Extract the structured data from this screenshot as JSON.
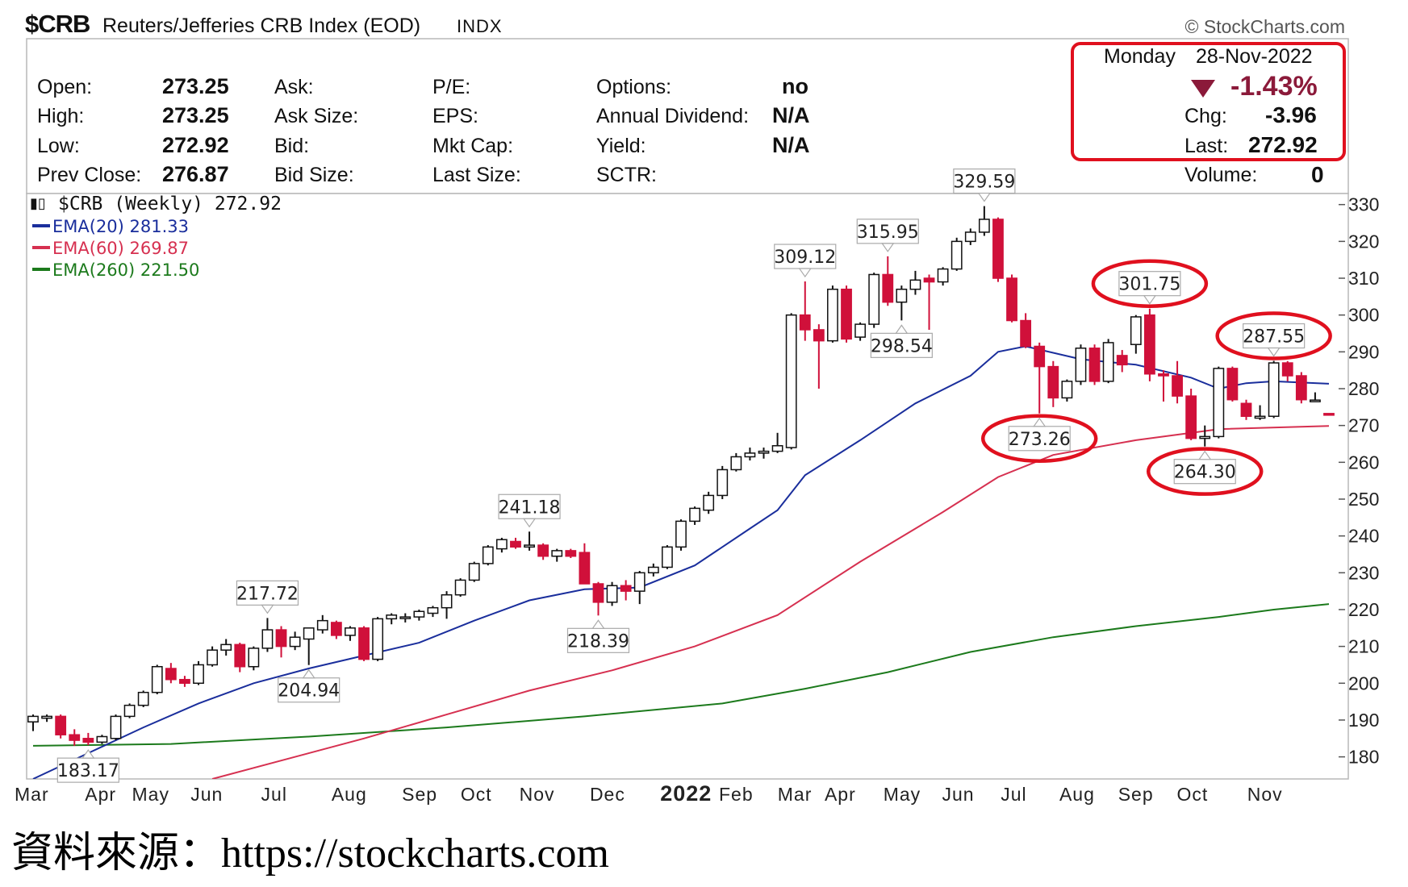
{
  "header": {
    "symbol": "$CRB",
    "title": "Reuters/Jefferies CRB Index (EOD)",
    "exchange": "INDX",
    "copyright": "© StockCharts.com"
  },
  "quote": {
    "open_label": "Open:",
    "open": "273.25",
    "high_label": "High:",
    "high": "273.25",
    "low_label": "Low:",
    "low": "272.92",
    "prevclose_label": "Prev Close:",
    "prevclose": "276.87",
    "ask_label": "Ask:",
    "asksize_label": "Ask Size:",
    "bid_label": "Bid:",
    "bidsize_label": "Bid Size:",
    "pe_label": "P/E:",
    "eps_label": "EPS:",
    "mktcap_label": "Mkt Cap:",
    "lastsize_label": "Last Size:",
    "options_label": "Options:",
    "options": "no",
    "dividend_label": "Annual Dividend:",
    "dividend": "N/A",
    "yield_label": "Yield:",
    "yield": "N/A",
    "sctr_label": "SCTR:",
    "date_day": "Monday",
    "date": "28-Nov-2022",
    "pct_change": "-1.43%",
    "chg_label": "Chg:",
    "chg": "-3.96",
    "last_label": "Last:",
    "last": "272.92",
    "volume_label": "Volume:",
    "volume": "0"
  },
  "legend": {
    "main": "$CRB (Weekly) 272.92",
    "ema20": "EMA(20) 281.33",
    "ema60": "EMA(60) 269.87",
    "ema260": "EMA(260) 221.50"
  },
  "colors": {
    "up": "#ffffff",
    "down": "#d0103a",
    "ema20": "#1a2e9c",
    "ema60": "#d63050",
    "ema260": "#1c7a1c",
    "highlight": "#e0101e",
    "text": "#111111",
    "pct": "#8b1a3a"
  },
  "source_note": "資料來源：https://stockcharts.com",
  "chart_data": {
    "type": "candlestick",
    "title": "$CRB (Weekly)",
    "timeframe": "weekly",
    "y_axis": {
      "side": "right",
      "ticks": [
        180,
        190,
        200,
        210,
        220,
        230,
        240,
        250,
        260,
        270,
        280,
        290,
        300,
        310,
        320,
        330
      ],
      "range": [
        174,
        333
      ]
    },
    "x_axis": {
      "labels": [
        "Mar",
        "Apr",
        "May",
        "Jun",
        "Jul",
        "Aug",
        "Sep",
        "Oct",
        "Nov",
        "Dec",
        "2022",
        "Feb",
        "Mar",
        "Apr",
        "May",
        "Jun",
        "Jul",
        "Aug",
        "Sep",
        "Oct",
        "Nov"
      ]
    },
    "candles": [
      {
        "w": 0,
        "o": 189.5,
        "h": 191.5,
        "l": 187.0,
        "c": 191.0
      },
      {
        "w": 1,
        "o": 190.5,
        "h": 191.5,
        "l": 189.5,
        "c": 191.0
      },
      {
        "w": 2,
        "o": 191.0,
        "h": 191.5,
        "l": 185.0,
        "c": 186.0
      },
      {
        "w": 3,
        "o": 186.0,
        "h": 187.5,
        "l": 183.0,
        "c": 184.5
      },
      {
        "w": 4,
        "o": 185.0,
        "h": 186.5,
        "l": 183.17,
        "c": 184.0
      },
      {
        "w": 5,
        "o": 184.0,
        "h": 186.0,
        "l": 183.5,
        "c": 185.5
      },
      {
        "w": 6,
        "o": 185.0,
        "h": 191.5,
        "l": 184.5,
        "c": 191.0
      },
      {
        "w": 7,
        "o": 191.0,
        "h": 194.5,
        "l": 190.5,
        "c": 194.0
      },
      {
        "w": 8,
        "o": 194.0,
        "h": 198.0,
        "l": 193.5,
        "c": 197.5
      },
      {
        "w": 9,
        "o": 197.5,
        "h": 205.0,
        "l": 197.0,
        "c": 204.5
      },
      {
        "w": 10,
        "o": 204.0,
        "h": 205.5,
        "l": 200.0,
        "c": 201.0
      },
      {
        "w": 11,
        "o": 201.0,
        "h": 202.0,
        "l": 199.0,
        "c": 200.0
      },
      {
        "w": 12,
        "o": 200.0,
        "h": 206.0,
        "l": 199.5,
        "c": 205.0
      },
      {
        "w": 13,
        "o": 205.0,
        "h": 210.0,
        "l": 204.5,
        "c": 209.0
      },
      {
        "w": 14,
        "o": 209.0,
        "h": 212.0,
        "l": 207.5,
        "c": 210.5
      },
      {
        "w": 15,
        "o": 210.5,
        "h": 211.0,
        "l": 203.0,
        "c": 204.5
      },
      {
        "w": 16,
        "o": 204.5,
        "h": 210.0,
        "l": 203.5,
        "c": 209.5
      },
      {
        "w": 17,
        "o": 209.5,
        "h": 217.72,
        "l": 208.5,
        "c": 214.5
      },
      {
        "w": 18,
        "o": 214.5,
        "h": 215.5,
        "l": 207.0,
        "c": 210.0
      },
      {
        "w": 19,
        "o": 210.0,
        "h": 214.0,
        "l": 209.0,
        "c": 212.5
      },
      {
        "w": 20,
        "o": 212.0,
        "h": 213.5,
        "l": 204.94,
        "c": 215.0
      },
      {
        "w": 21,
        "o": 214.5,
        "h": 218.5,
        "l": 213.5,
        "c": 217.0
      },
      {
        "w": 22,
        "o": 216.5,
        "h": 217.0,
        "l": 212.0,
        "c": 213.0
      },
      {
        "w": 23,
        "o": 213.0,
        "h": 215.5,
        "l": 211.5,
        "c": 215.0
      },
      {
        "w": 24,
        "o": 215.0,
        "h": 215.5,
        "l": 206.0,
        "c": 206.5
      },
      {
        "w": 25,
        "o": 206.5,
        "h": 218.0,
        "l": 206.0,
        "c": 217.5
      },
      {
        "w": 26,
        "o": 217.5,
        "h": 219.0,
        "l": 216.0,
        "c": 218.5
      },
      {
        "w": 27,
        "o": 218.0,
        "h": 219.0,
        "l": 216.5,
        "c": 218.0
      },
      {
        "w": 28,
        "o": 218.0,
        "h": 220.0,
        "l": 217.0,
        "c": 219.5
      },
      {
        "w": 29,
        "o": 219.0,
        "h": 221.0,
        "l": 218.0,
        "c": 220.5
      },
      {
        "w": 30,
        "o": 220.5,
        "h": 225.0,
        "l": 217.5,
        "c": 224.0
      },
      {
        "w": 31,
        "o": 224.0,
        "h": 228.5,
        "l": 223.5,
        "c": 228.0
      },
      {
        "w": 32,
        "o": 228.0,
        "h": 233.0,
        "l": 227.5,
        "c": 232.5
      },
      {
        "w": 33,
        "o": 232.5,
        "h": 237.5,
        "l": 232.0,
        "c": 237.0
      },
      {
        "w": 34,
        "o": 236.5,
        "h": 239.5,
        "l": 235.5,
        "c": 239.0
      },
      {
        "w": 35,
        "o": 238.5,
        "h": 239.5,
        "l": 236.5,
        "c": 237.0
      },
      {
        "w": 36,
        "o": 237.0,
        "h": 241.18,
        "l": 236.0,
        "c": 237.5
      },
      {
        "w": 37,
        "o": 237.5,
        "h": 238.0,
        "l": 233.5,
        "c": 234.5
      },
      {
        "w": 38,
        "o": 234.5,
        "h": 236.5,
        "l": 233.0,
        "c": 236.0
      },
      {
        "w": 39,
        "o": 236.0,
        "h": 236.5,
        "l": 234.0,
        "c": 234.5
      },
      {
        "w": 40,
        "o": 235.5,
        "h": 238.0,
        "l": 228.0,
        "c": 227.0
      },
      {
        "w": 41,
        "o": 227.0,
        "h": 227.5,
        "l": 218.39,
        "c": 222.0
      },
      {
        "w": 42,
        "o": 222.0,
        "h": 227.5,
        "l": 221.0,
        "c": 226.5
      },
      {
        "w": 43,
        "o": 226.5,
        "h": 228.0,
        "l": 222.5,
        "c": 225.0
      },
      {
        "w": 44,
        "o": 225.0,
        "h": 230.5,
        "l": 221.5,
        "c": 230.0
      },
      {
        "w": 45,
        "o": 230.0,
        "h": 232.5,
        "l": 229.0,
        "c": 231.5
      },
      {
        "w": 46,
        "o": 231.5,
        "h": 237.5,
        "l": 231.0,
        "c": 237.0
      },
      {
        "w": 47,
        "o": 237.0,
        "h": 244.5,
        "l": 236.0,
        "c": 244.0
      },
      {
        "w": 48,
        "o": 244.0,
        "h": 248.0,
        "l": 243.0,
        "c": 247.5
      },
      {
        "w": 49,
        "o": 247.0,
        "h": 252.0,
        "l": 246.0,
        "c": 251.0
      },
      {
        "w": 50,
        "o": 251.0,
        "h": 259.0,
        "l": 250.0,
        "c": 258.0
      },
      {
        "w": 51,
        "o": 258.0,
        "h": 262.5,
        "l": 257.5,
        "c": 261.5
      },
      {
        "w": 52,
        "o": 261.5,
        "h": 264.0,
        "l": 260.5,
        "c": 262.5
      },
      {
        "w": 53,
        "o": 262.5,
        "h": 264.0,
        "l": 261.0,
        "c": 263.0
      },
      {
        "w": 54,
        "o": 263.0,
        "h": 268.0,
        "l": 262.5,
        "c": 264.5
      },
      {
        "w": 55,
        "o": 264.0,
        "h": 300.5,
        "l": 263.5,
        "c": 300.0
      },
      {
        "w": 56,
        "o": 300.0,
        "h": 309.12,
        "l": 293.0,
        "c": 296.0
      },
      {
        "w": 57,
        "o": 296.0,
        "h": 297.5,
        "l": 280.0,
        "c": 293.0
      },
      {
        "w": 58,
        "o": 293.0,
        "h": 308.0,
        "l": 292.5,
        "c": 307.0
      },
      {
        "w": 59,
        "o": 307.0,
        "h": 308.0,
        "l": 292.5,
        "c": 293.5
      },
      {
        "w": 60,
        "o": 294.0,
        "h": 298.0,
        "l": 293.0,
        "c": 297.5
      },
      {
        "w": 61,
        "o": 297.5,
        "h": 311.5,
        "l": 296.5,
        "c": 311.0
      },
      {
        "w": 62,
        "o": 311.0,
        "h": 315.95,
        "l": 302.5,
        "c": 303.5
      },
      {
        "w": 63,
        "o": 303.5,
        "h": 308.0,
        "l": 298.54,
        "c": 307.0
      },
      {
        "w": 64,
        "o": 307.0,
        "h": 312.0,
        "l": 305.5,
        "c": 309.5
      },
      {
        "w": 65,
        "o": 310.0,
        "h": 311.0,
        "l": 296.0,
        "c": 309.0
      },
      {
        "w": 66,
        "o": 309.0,
        "h": 313.0,
        "l": 308.0,
        "c": 312.5
      },
      {
        "w": 67,
        "o": 312.5,
        "h": 321.0,
        "l": 312.0,
        "c": 320.0
      },
      {
        "w": 68,
        "o": 320.0,
        "h": 323.5,
        "l": 319.0,
        "c": 322.5
      },
      {
        "w": 69,
        "o": 322.5,
        "h": 329.59,
        "l": 321.5,
        "c": 326.0
      },
      {
        "w": 70,
        "o": 326.0,
        "h": 326.5,
        "l": 309.0,
        "c": 310.0
      },
      {
        "w": 71,
        "o": 310.0,
        "h": 311.0,
        "l": 298.0,
        "c": 298.5
      },
      {
        "w": 72,
        "o": 298.5,
        "h": 300.5,
        "l": 291.0,
        "c": 291.5
      },
      {
        "w": 73,
        "o": 291.5,
        "h": 292.5,
        "l": 273.26,
        "c": 286.0
      },
      {
        "w": 74,
        "o": 286.0,
        "h": 287.5,
        "l": 275.0,
        "c": 277.5
      },
      {
        "w": 75,
        "o": 277.5,
        "h": 282.5,
        "l": 276.5,
        "c": 282.0
      },
      {
        "w": 76,
        "o": 282.0,
        "h": 292.0,
        "l": 281.0,
        "c": 291.0
      },
      {
        "w": 77,
        "o": 291.0,
        "h": 292.0,
        "l": 281.0,
        "c": 282.0
      },
      {
        "w": 78,
        "o": 282.0,
        "h": 293.5,
        "l": 281.5,
        "c": 292.5
      },
      {
        "w": 79,
        "o": 289.0,
        "h": 290.5,
        "l": 284.5,
        "c": 286.5
      },
      {
        "w": 80,
        "o": 292.0,
        "h": 300.0,
        "l": 289.5,
        "c": 299.5
      },
      {
        "w": 81,
        "o": 300.0,
        "h": 301.75,
        "l": 282.0,
        "c": 284.0
      },
      {
        "w": 82,
        "o": 284.0,
        "h": 285.0,
        "l": 276.5,
        "c": 283.5
      },
      {
        "w": 83,
        "o": 283.5,
        "h": 287.5,
        "l": 276.0,
        "c": 278.0
      },
      {
        "w": 84,
        "o": 278.0,
        "h": 280.0,
        "l": 266.0,
        "c": 266.5
      },
      {
        "w": 85,
        "o": 266.5,
        "h": 270.0,
        "l": 264.3,
        "c": 267.0
      },
      {
        "w": 86,
        "o": 267.0,
        "h": 286.0,
        "l": 266.5,
        "c": 285.5
      },
      {
        "w": 87,
        "o": 285.5,
        "h": 286.0,
        "l": 276.5,
        "c": 277.0
      },
      {
        "w": 88,
        "o": 276.0,
        "h": 277.0,
        "l": 271.5,
        "c": 272.5
      },
      {
        "w": 89,
        "o": 272.0,
        "h": 275.5,
        "l": 271.5,
        "c": 272.5
      },
      {
        "w": 90,
        "o": 272.5,
        "h": 287.55,
        "l": 272.0,
        "c": 287.0
      },
      {
        "w": 91,
        "o": 287.0,
        "h": 287.5,
        "l": 282.0,
        "c": 283.5
      },
      {
        "w": 92,
        "o": 283.5,
        "h": 284.5,
        "l": 276.0,
        "c": 277.0
      },
      {
        "w": 93,
        "o": 276.9,
        "h": 279.0,
        "l": 276.5,
        "c": 276.9
      },
      {
        "w": 94,
        "o": 273.25,
        "h": 273.25,
        "l": 272.92,
        "c": 272.92
      }
    ],
    "ema20": [
      [
        0,
        174.0
      ],
      [
        4,
        181.0
      ],
      [
        8,
        188.0
      ],
      [
        12,
        194.5
      ],
      [
        16,
        200.0
      ],
      [
        20,
        204.0
      ],
      [
        24,
        207.5
      ],
      [
        28,
        211.0
      ],
      [
        32,
        217.0
      ],
      [
        36,
        222.5
      ],
      [
        40,
        225.5
      ],
      [
        44,
        226.0
      ],
      [
        48,
        232.0
      ],
      [
        52,
        242.0
      ],
      [
        54,
        247.0
      ],
      [
        56,
        256.5
      ],
      [
        60,
        266.0
      ],
      [
        64,
        276.0
      ],
      [
        68,
        283.5
      ],
      [
        70,
        290.0
      ],
      [
        72,
        291.5
      ],
      [
        76,
        288.0
      ],
      [
        80,
        286.5
      ],
      [
        84,
        283.0
      ],
      [
        86,
        280.0
      ],
      [
        88,
        281.5
      ],
      [
        90,
        282.0
      ],
      [
        94,
        281.33
      ]
    ],
    "ema60": [
      [
        13,
        174.0
      ],
      [
        18,
        179.0
      ],
      [
        24,
        185.0
      ],
      [
        30,
        191.5
      ],
      [
        36,
        198.0
      ],
      [
        42,
        203.5
      ],
      [
        48,
        210.0
      ],
      [
        54,
        218.5
      ],
      [
        60,
        233.0
      ],
      [
        66,
        246.5
      ],
      [
        70,
        256.0
      ],
      [
        74,
        262.0
      ],
      [
        80,
        266.0
      ],
      [
        86,
        269.0
      ],
      [
        94,
        269.87
      ]
    ],
    "ema260": [
      [
        0,
        183.0
      ],
      [
        10,
        183.5
      ],
      [
        20,
        185.5
      ],
      [
        30,
        188.0
      ],
      [
        40,
        191.0
      ],
      [
        50,
        194.5
      ],
      [
        56,
        198.5
      ],
      [
        62,
        203.0
      ],
      [
        68,
        208.5
      ],
      [
        74,
        212.5
      ],
      [
        80,
        215.5
      ],
      [
        86,
        218.0
      ],
      [
        90,
        220.0
      ],
      [
        94,
        221.5
      ]
    ],
    "annotations": [
      {
        "w": 4,
        "value": 183.17,
        "text": "183.17",
        "pos": "below"
      },
      {
        "w": 17,
        "value": 217.72,
        "text": "217.72",
        "pos": "above"
      },
      {
        "w": 20,
        "value": 204.94,
        "text": "204.94",
        "pos": "below"
      },
      {
        "w": 36,
        "value": 241.18,
        "text": "241.18",
        "pos": "above"
      },
      {
        "w": 41,
        "value": 218.39,
        "text": "218.39",
        "pos": "below"
      },
      {
        "w": 56,
        "value": 309.12,
        "text": "309.12",
        "pos": "above"
      },
      {
        "w": 62,
        "value": 315.95,
        "text": "315.95",
        "pos": "above"
      },
      {
        "w": 63,
        "value": 298.54,
        "text": "298.54",
        "pos": "below"
      },
      {
        "w": 69,
        "value": 329.59,
        "text": "329.59",
        "pos": "above"
      },
      {
        "w": 73,
        "value": 273.26,
        "text": "273.26",
        "pos": "below",
        "circled": true
      },
      {
        "w": 81,
        "value": 301.75,
        "text": "301.75",
        "pos": "above",
        "circled": true
      },
      {
        "w": 85,
        "value": 264.3,
        "text": "264.30",
        "pos": "below",
        "circled": true
      },
      {
        "w": 90,
        "value": 287.55,
        "text": "287.55",
        "pos": "above",
        "circled": true
      }
    ]
  }
}
